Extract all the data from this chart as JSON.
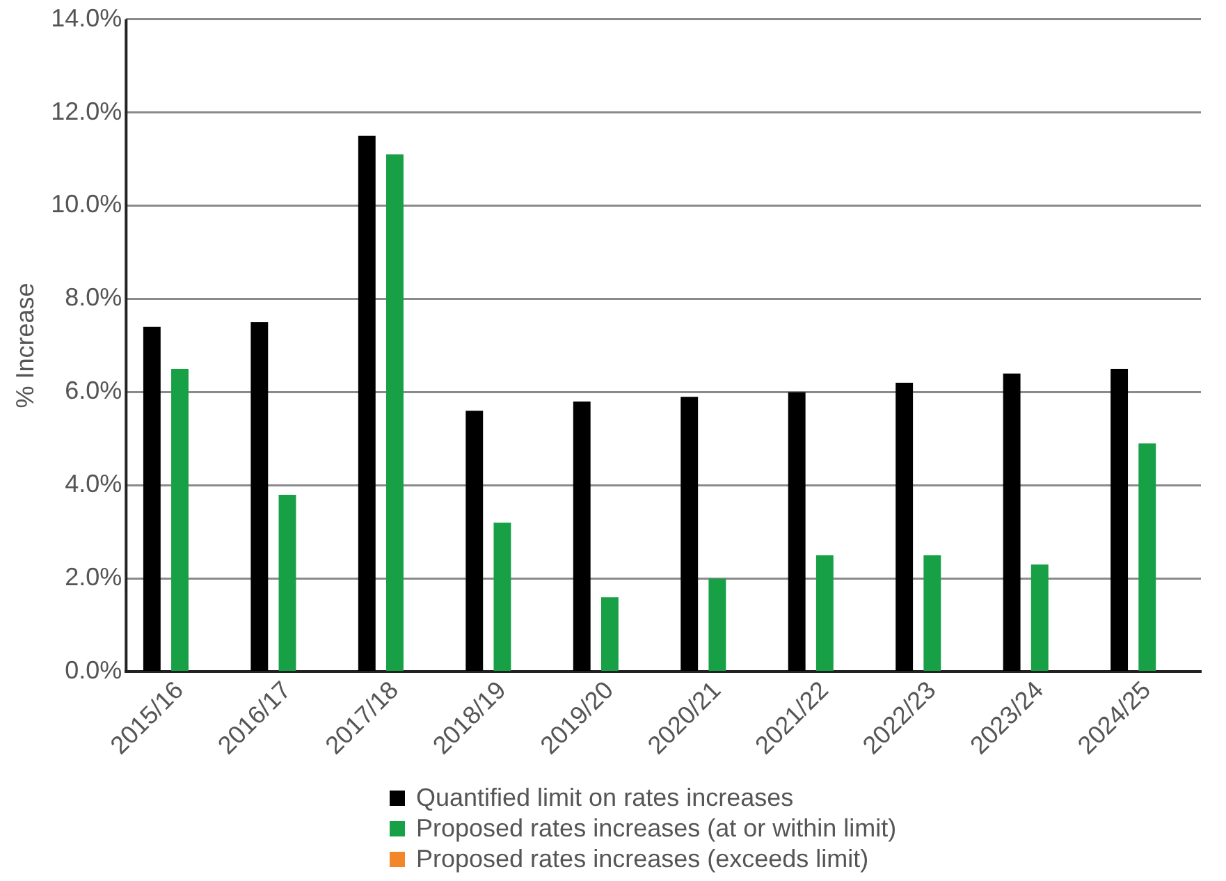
{
  "chart_data": {
    "type": "bar",
    "ylabel": "% Increase",
    "categories": [
      "2015/16",
      "2016/17",
      "2017/18",
      "2018/19",
      "2019/20",
      "2020/21",
      "2021/22",
      "2022/23",
      "2023/24",
      "2024/25"
    ],
    "series": [
      {
        "name": "Quantified limit on rates increases",
        "color": "#000000",
        "values": [
          7.4,
          7.5,
          11.5,
          5.6,
          5.8,
          5.9,
          6.0,
          6.2,
          6.4,
          6.5
        ]
      },
      {
        "name": "Proposed rates increases (at or within limit)",
        "color": "#17a046",
        "values": [
          6.5,
          3.8,
          11.1,
          3.2,
          1.6,
          2.0,
          2.5,
          2.5,
          2.3,
          4.9
        ]
      },
      {
        "name": "Proposed rates increases (exceeds limit)",
        "color": "#f4862a",
        "values": [
          null,
          null,
          null,
          null,
          null,
          null,
          null,
          null,
          null,
          null
        ]
      }
    ],
    "ylim": [
      0,
      14
    ],
    "yticks": [
      {
        "value": 0,
        "label": "0.0%"
      },
      {
        "value": 2,
        "label": "2.0%"
      },
      {
        "value": 4,
        "label": "4.0%"
      },
      {
        "value": 6,
        "label": "6.0%"
      },
      {
        "value": 8,
        "label": "8.0%"
      },
      {
        "value": 10,
        "label": "10.0%"
      },
      {
        "value": 12,
        "label": "12.0%"
      },
      {
        "value": 14,
        "label": "14.0%"
      }
    ],
    "grid": "y",
    "legend": "bottom"
  }
}
